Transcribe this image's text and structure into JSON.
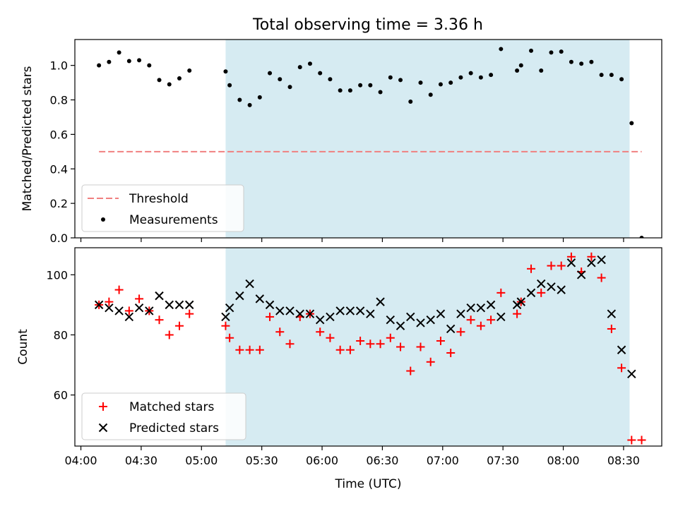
{
  "title": "Total observing time = 3.36 h",
  "colors": {
    "shade": "#add8e6",
    "threshold": "#f08080",
    "measurement": "#000000",
    "matched": "#ff0000",
    "predicted": "#000000"
  },
  "chart_data": [
    {
      "type": "scatter",
      "ylabel": "Matched/Predicted stars",
      "ylim": [
        0,
        1.15
      ],
      "yticks": [
        "0.0",
        "0.2",
        "0.4",
        "0.6",
        "0.8",
        "1.0"
      ],
      "ytick_values": [
        0,
        0.2,
        0.4,
        0.6,
        0.8,
        1.0
      ],
      "shaded_interval": [
        "05:12",
        "08:33"
      ],
      "threshold": {
        "name": "Threshold",
        "value": 0.5,
        "x_start": "04:09",
        "x_end": "08:39"
      },
      "legend": {
        "position": "lower-left",
        "entries": [
          "Threshold",
          "Measurements"
        ]
      },
      "series": [
        {
          "name": "Measurements",
          "marker": "dot",
          "points": [
            [
              "04:09",
              1.0
            ],
            [
              "04:14",
              1.02
            ],
            [
              "04:19",
              1.075
            ],
            [
              "04:24",
              1.025
            ],
            [
              "04:29",
              1.03
            ],
            [
              "04:34",
              1.0
            ],
            [
              "04:39",
              0.915
            ],
            [
              "04:44",
              0.89
            ],
            [
              "04:49",
              0.925
            ],
            [
              "04:54",
              0.97
            ],
            [
              "05:12",
              0.965
            ],
            [
              "05:14",
              0.885
            ],
            [
              "05:19",
              0.8
            ],
            [
              "05:24",
              0.77
            ],
            [
              "05:29",
              0.815
            ],
            [
              "05:34",
              0.955
            ],
            [
              "05:39",
              0.92
            ],
            [
              "05:44",
              0.875
            ],
            [
              "05:49",
              0.99
            ],
            [
              "05:54",
              1.01
            ],
            [
              "05:59",
              0.955
            ],
            [
              "06:04",
              0.92
            ],
            [
              "06:09",
              0.855
            ],
            [
              "06:14",
              0.855
            ],
            [
              "06:19",
              0.885
            ],
            [
              "06:24",
              0.885
            ],
            [
              "06:29",
              0.845
            ],
            [
              "06:34",
              0.93
            ],
            [
              "06:39",
              0.915
            ],
            [
              "06:44",
              0.79
            ],
            [
              "06:49",
              0.9
            ],
            [
              "06:54",
              0.83
            ],
            [
              "06:59",
              0.89
            ],
            [
              "07:04",
              0.9
            ],
            [
              "07:09",
              0.93
            ],
            [
              "07:14",
              0.955
            ],
            [
              "07:19",
              0.93
            ],
            [
              "07:24",
              0.945
            ],
            [
              "07:29",
              1.095
            ],
            [
              "07:37",
              0.97
            ],
            [
              "07:39",
              1.0
            ],
            [
              "07:44",
              1.085
            ],
            [
              "07:49",
              0.97
            ],
            [
              "07:54",
              1.075
            ],
            [
              "07:59",
              1.08
            ],
            [
              "08:04",
              1.02
            ],
            [
              "08:09",
              1.01
            ],
            [
              "08:14",
              1.02
            ],
            [
              "08:19",
              0.945
            ],
            [
              "08:24",
              0.945
            ],
            [
              "08:29",
              0.92
            ],
            [
              "08:34",
              0.665
            ],
            [
              "08:39",
              0.0
            ]
          ]
        }
      ]
    },
    {
      "type": "scatter",
      "ylabel": "Count",
      "xlabel": "Time (UTC)",
      "ylim": [
        43,
        109
      ],
      "yticks": [
        "60",
        "80",
        "100"
      ],
      "ytick_values": [
        60,
        80,
        100
      ],
      "xlim": [
        "03:57",
        "08:49"
      ],
      "xticks": [
        "04:00",
        "04:30",
        "05:00",
        "05:30",
        "06:00",
        "06:30",
        "07:00",
        "07:30",
        "08:00",
        "08:30"
      ],
      "shaded_interval": [
        "05:12",
        "08:33"
      ],
      "legend": {
        "position": "lower-left",
        "entries": [
          "Matched stars",
          "Predicted stars"
        ]
      },
      "series": [
        {
          "name": "Matched stars",
          "marker": "plus",
          "points": [
            [
              "04:09",
              90
            ],
            [
              "04:14",
              91
            ],
            [
              "04:19",
              95
            ],
            [
              "04:24",
              88
            ],
            [
              "04:29",
              92
            ],
            [
              "04:34",
              88
            ],
            [
              "04:39",
              85
            ],
            [
              "04:44",
              80
            ],
            [
              "04:49",
              83
            ],
            [
              "04:54",
              87
            ],
            [
              "05:12",
              83
            ],
            [
              "05:14",
              79
            ],
            [
              "05:19",
              75
            ],
            [
              "05:24",
              75
            ],
            [
              "05:29",
              75
            ],
            [
              "05:34",
              86
            ],
            [
              "05:39",
              81
            ],
            [
              "05:44",
              77
            ],
            [
              "05:49",
              86
            ],
            [
              "05:54",
              87
            ],
            [
              "05:59",
              81
            ],
            [
              "06:04",
              79
            ],
            [
              "06:09",
              75
            ],
            [
              "06:14",
              75
            ],
            [
              "06:19",
              78
            ],
            [
              "06:24",
              77
            ],
            [
              "06:29",
              77
            ],
            [
              "06:34",
              79
            ],
            [
              "06:39",
              76
            ],
            [
              "06:44",
              68
            ],
            [
              "06:49",
              76
            ],
            [
              "06:54",
              71
            ],
            [
              "06:59",
              78
            ],
            [
              "07:04",
              74
            ],
            [
              "07:09",
              81
            ],
            [
              "07:14",
              85
            ],
            [
              "07:19",
              83
            ],
            [
              "07:24",
              85
            ],
            [
              "07:29",
              94
            ],
            [
              "07:37",
              87
            ],
            [
              "07:39",
              91
            ],
            [
              "07:44",
              102
            ],
            [
              "07:49",
              94
            ],
            [
              "07:54",
              103
            ],
            [
              "07:59",
              103
            ],
            [
              "08:04",
              106
            ],
            [
              "08:09",
              101
            ],
            [
              "08:14",
              106
            ],
            [
              "08:19",
              99
            ],
            [
              "08:24",
              82
            ],
            [
              "08:29",
              69
            ],
            [
              "08:34",
              45
            ],
            [
              "08:39",
              45
            ]
          ]
        },
        {
          "name": "Predicted stars",
          "marker": "x",
          "points": [
            [
              "04:09",
              90
            ],
            [
              "04:14",
              89
            ],
            [
              "04:19",
              88
            ],
            [
              "04:24",
              86
            ],
            [
              "04:29",
              89
            ],
            [
              "04:34",
              88
            ],
            [
              "04:39",
              93
            ],
            [
              "04:44",
              90
            ],
            [
              "04:49",
              90
            ],
            [
              "04:54",
              90
            ],
            [
              "05:12",
              86
            ],
            [
              "05:14",
              89
            ],
            [
              "05:19",
              93
            ],
            [
              "05:24",
              97
            ],
            [
              "05:29",
              92
            ],
            [
              "05:34",
              90
            ],
            [
              "05:39",
              88
            ],
            [
              "05:44",
              88
            ],
            [
              "05:49",
              87
            ],
            [
              "05:54",
              87
            ],
            [
              "05:59",
              85
            ],
            [
              "06:04",
              86
            ],
            [
              "06:09",
              88
            ],
            [
              "06:14",
              88
            ],
            [
              "06:19",
              88
            ],
            [
              "06:24",
              87
            ],
            [
              "06:29",
              91
            ],
            [
              "06:34",
              85
            ],
            [
              "06:39",
              83
            ],
            [
              "06:44",
              86
            ],
            [
              "06:49",
              84
            ],
            [
              "06:54",
              85
            ],
            [
              "06:59",
              87
            ],
            [
              "07:04",
              82
            ],
            [
              "07:09",
              87
            ],
            [
              "07:14",
              89
            ],
            [
              "07:19",
              89
            ],
            [
              "07:24",
              90
            ],
            [
              "07:29",
              86
            ],
            [
              "07:37",
              90
            ],
            [
              "07:39",
              91
            ],
            [
              "07:44",
              94
            ],
            [
              "07:49",
              97
            ],
            [
              "07:54",
              96
            ],
            [
              "07:59",
              95
            ],
            [
              "08:04",
              104
            ],
            [
              "08:09",
              100
            ],
            [
              "08:14",
              104
            ],
            [
              "08:19",
              105
            ],
            [
              "08:24",
              87
            ],
            [
              "08:29",
              75
            ],
            [
              "08:34",
              67
            ]
          ]
        }
      ]
    }
  ]
}
